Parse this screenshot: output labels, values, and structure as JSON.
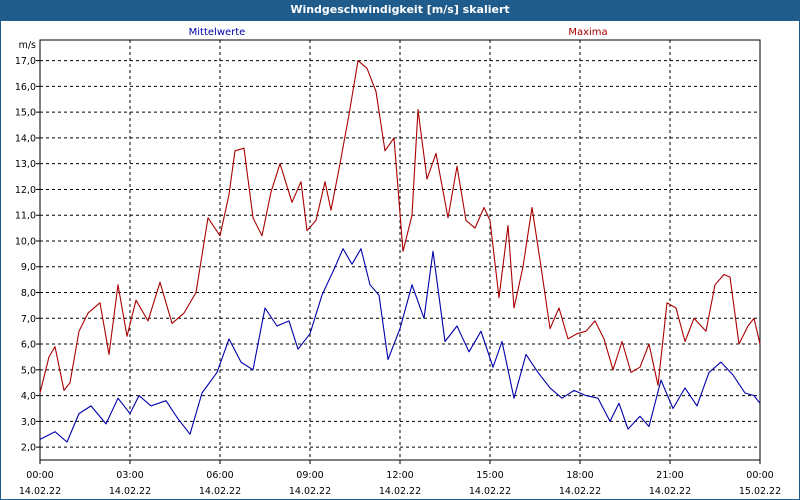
{
  "chart_data": {
    "type": "line",
    "title": "Windgeschwindigkeit [m/s] skaliert",
    "ylabel": "m/s",
    "ylim": [
      1.5,
      17.8
    ],
    "yticks": [
      2.0,
      3.0,
      4.0,
      5.0,
      6.0,
      7.0,
      8.0,
      9.0,
      10.0,
      11.0,
      12.0,
      13.0,
      14.0,
      15.0,
      16.0,
      17.0
    ],
    "ytick_labels": [
      "2,0",
      "3,0",
      "4,0",
      "5,0",
      "6,0",
      "7,0",
      "8,0",
      "9,0",
      "10,0",
      "11,0",
      "12,0",
      "13,0",
      "14,0",
      "15,0",
      "16,0",
      "17,0"
    ],
    "xlim": [
      0,
      24
    ],
    "xticks": [
      {
        "time": "00:00",
        "date": "14.02.22"
      },
      {
        "time": "03:00",
        "date": "14.02.22"
      },
      {
        "time": "06:00",
        "date": "14.02.22"
      },
      {
        "time": "09:00",
        "date": "14.02.22"
      },
      {
        "time": "12:00",
        "date": "14.02.22"
      },
      {
        "time": "15:00",
        "date": "14.02.22"
      },
      {
        "time": "18:00",
        "date": "14.02.22"
      },
      {
        "time": "21:00",
        "date": "14.02.22"
      },
      {
        "time": "00:00",
        "date": "15.02.22"
      }
    ],
    "grid": true,
    "series": [
      {
        "name": "Mittelwerte",
        "color": "#0000aa",
        "points": [
          [
            0,
            2.3
          ],
          [
            0.5,
            2.6
          ],
          [
            0.9,
            2.2
          ],
          [
            1.3,
            3.3
          ],
          [
            1.7,
            3.6
          ],
          [
            2.2,
            2.9
          ],
          [
            2.6,
            3.9
          ],
          [
            3.0,
            3.3
          ],
          [
            3.3,
            4.0
          ],
          [
            3.7,
            3.6
          ],
          [
            4.2,
            3.8
          ],
          [
            4.6,
            3.1
          ],
          [
            5.0,
            2.5
          ],
          [
            5.4,
            4.1
          ],
          [
            5.9,
            4.9
          ],
          [
            6.3,
            6.2
          ],
          [
            6.7,
            5.3
          ],
          [
            7.1,
            5.0
          ],
          [
            7.5,
            7.4
          ],
          [
            7.9,
            6.7
          ],
          [
            8.3,
            6.9
          ],
          [
            8.6,
            5.8
          ],
          [
            9.0,
            6.4
          ],
          [
            9.4,
            7.9
          ],
          [
            9.8,
            8.9
          ],
          [
            10.1,
            9.7
          ],
          [
            10.4,
            9.1
          ],
          [
            10.7,
            9.7
          ],
          [
            11.0,
            8.3
          ],
          [
            11.3,
            7.9
          ],
          [
            11.6,
            5.4
          ],
          [
            12.0,
            6.6
          ],
          [
            12.4,
            8.3
          ],
          [
            12.8,
            7.0
          ],
          [
            13.1,
            9.6
          ],
          [
            13.5,
            6.1
          ],
          [
            13.9,
            6.7
          ],
          [
            14.3,
            5.7
          ],
          [
            14.7,
            6.5
          ],
          [
            15.1,
            5.1
          ],
          [
            15.4,
            6.1
          ],
          [
            15.8,
            3.9
          ],
          [
            16.2,
            5.6
          ],
          [
            16.6,
            4.9
          ],
          [
            17.0,
            4.3
          ],
          [
            17.4,
            3.9
          ],
          [
            17.8,
            4.2
          ],
          [
            18.2,
            4.0
          ],
          [
            18.6,
            3.9
          ],
          [
            19.0,
            3.0
          ],
          [
            19.3,
            3.7
          ],
          [
            19.6,
            2.7
          ],
          [
            20.0,
            3.2
          ],
          [
            20.3,
            2.8
          ],
          [
            20.7,
            4.6
          ],
          [
            21.1,
            3.5
          ],
          [
            21.5,
            4.3
          ],
          [
            21.9,
            3.6
          ],
          [
            22.3,
            4.9
          ],
          [
            22.7,
            5.3
          ],
          [
            23.1,
            4.8
          ],
          [
            23.5,
            4.1
          ],
          [
            23.8,
            4.0
          ],
          [
            24.0,
            3.7
          ]
        ]
      },
      {
        "name": "Maxima",
        "color": "#aa0000",
        "points": [
          [
            0,
            4.1
          ],
          [
            0.3,
            5.5
          ],
          [
            0.5,
            5.9
          ],
          [
            0.8,
            4.2
          ],
          [
            1.0,
            4.5
          ],
          [
            1.3,
            6.5
          ],
          [
            1.6,
            7.2
          ],
          [
            2.0,
            7.6
          ],
          [
            2.3,
            5.6
          ],
          [
            2.6,
            8.3
          ],
          [
            2.9,
            6.3
          ],
          [
            3.2,
            7.7
          ],
          [
            3.6,
            6.9
          ],
          [
            4.0,
            8.4
          ],
          [
            4.4,
            6.8
          ],
          [
            4.8,
            7.2
          ],
          [
            5.2,
            8.0
          ],
          [
            5.6,
            10.9
          ],
          [
            6.0,
            10.2
          ],
          [
            6.3,
            11.8
          ],
          [
            6.5,
            13.5
          ],
          [
            6.8,
            13.6
          ],
          [
            7.1,
            10.9
          ],
          [
            7.4,
            10.2
          ],
          [
            7.7,
            11.9
          ],
          [
            8.0,
            13.0
          ],
          [
            8.4,
            11.5
          ],
          [
            8.7,
            12.3
          ],
          [
            8.9,
            10.4
          ],
          [
            9.2,
            10.8
          ],
          [
            9.5,
            12.3
          ],
          [
            9.7,
            11.2
          ],
          [
            10.0,
            13.0
          ],
          [
            10.3,
            14.9
          ],
          [
            10.6,
            17.0
          ],
          [
            10.9,
            16.7
          ],
          [
            11.2,
            15.8
          ],
          [
            11.5,
            13.5
          ],
          [
            11.8,
            14.0
          ],
          [
            12.1,
            9.6
          ],
          [
            12.4,
            11.0
          ],
          [
            12.6,
            15.1
          ],
          [
            12.9,
            12.4
          ],
          [
            13.2,
            13.4
          ],
          [
            13.6,
            10.9
          ],
          [
            13.9,
            12.9
          ],
          [
            14.2,
            10.8
          ],
          [
            14.5,
            10.5
          ],
          [
            14.8,
            11.3
          ],
          [
            15.0,
            10.8
          ],
          [
            15.3,
            7.8
          ],
          [
            15.6,
            10.6
          ],
          [
            15.8,
            7.4
          ],
          [
            16.1,
            9.0
          ],
          [
            16.4,
            11.3
          ],
          [
            16.7,
            9.0
          ],
          [
            17.0,
            6.6
          ],
          [
            17.3,
            7.4
          ],
          [
            17.6,
            6.2
          ],
          [
            17.9,
            6.4
          ],
          [
            18.2,
            6.5
          ],
          [
            18.5,
            6.9
          ],
          [
            18.8,
            6.2
          ],
          [
            19.1,
            5.0
          ],
          [
            19.4,
            6.1
          ],
          [
            19.7,
            4.9
          ],
          [
            20.0,
            5.1
          ],
          [
            20.3,
            6.0
          ],
          [
            20.6,
            4.4
          ],
          [
            20.9,
            7.6
          ],
          [
            21.2,
            7.4
          ],
          [
            21.5,
            6.1
          ],
          [
            21.8,
            7.0
          ],
          [
            22.2,
            6.5
          ],
          [
            22.5,
            8.3
          ],
          [
            22.8,
            8.7
          ],
          [
            23.0,
            8.6
          ],
          [
            23.3,
            6.0
          ],
          [
            23.6,
            6.7
          ],
          [
            23.8,
            7.0
          ],
          [
            24.0,
            6.0
          ]
        ]
      }
    ]
  }
}
